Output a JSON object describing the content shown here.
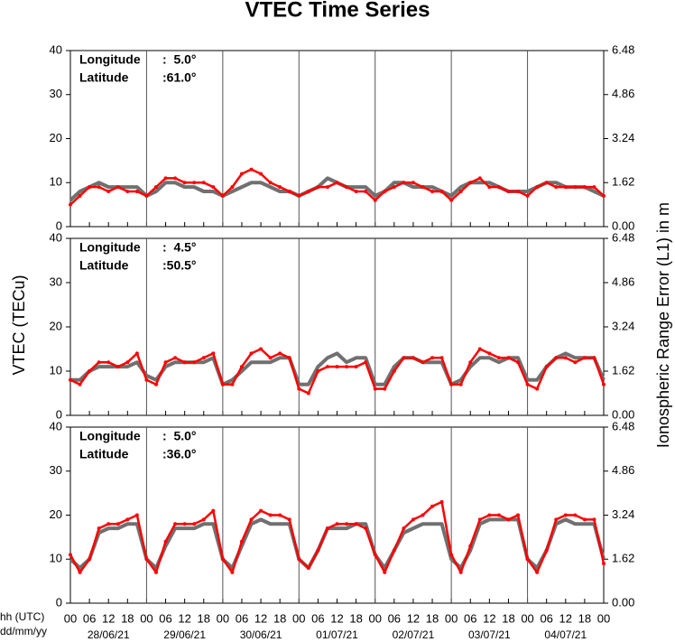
{
  "figure": {
    "title": "VTEC Time Series",
    "y_label": "VTEC (TECu)",
    "y2_label": "Ionospheric Range Error (L1) in m",
    "x_label_lines": [
      "hh (UTC)",
      "dd/mm/yy"
    ],
    "x": [
      0,
      3,
      6,
      9,
      12,
      15,
      18,
      21,
      24,
      27,
      30,
      33,
      36,
      39,
      42,
      45,
      48,
      51,
      54,
      57,
      60,
      63,
      66,
      69,
      72,
      75,
      78,
      81,
      84,
      87,
      90,
      93,
      96,
      99,
      102,
      105,
      108,
      111,
      114,
      117,
      120,
      123,
      126,
      129,
      132,
      135,
      138,
      141,
      144,
      147,
      150,
      153,
      156,
      159,
      162,
      165,
      168
    ],
    "xlim": [
      0,
      168
    ],
    "xticks": [
      {
        "value": 0,
        "label": "00"
      },
      {
        "value": 6,
        "label": "06"
      },
      12,
      18,
      {
        "value": 24,
        "label": "00"
      },
      {
        "value": 30,
        "label": "06"
      },
      {
        "value": 36,
        "label": "12"
      },
      {
        "value": 42,
        "label": "18"
      },
      {
        "value": 48,
        "label": "00"
      },
      {
        "value": 54,
        "label": "06"
      },
      {
        "value": 60,
        "label": "12"
      },
      {
        "value": 66,
        "label": "18"
      },
      {
        "value": 72,
        "label": "00"
      },
      {
        "value": 78,
        "label": "06"
      },
      {
        "value": 84,
        "label": "12"
      },
      {
        "value": 90,
        "label": "18"
      },
      {
        "value": 96,
        "label": "00"
      },
      {
        "value": 102,
        "label": "06"
      },
      {
        "value": 108,
        "label": "12"
      },
      {
        "value": 114,
        "label": "18"
      },
      {
        "value": 120,
        "label": "00"
      },
      {
        "value": 126,
        "label": "06"
      },
      {
        "value": 132,
        "label": "12"
      },
      {
        "value": 138,
        "label": "18"
      },
      {
        "value": 144,
        "label": "00"
      },
      {
        "value": 150,
        "label": "06"
      },
      {
        "value": 156,
        "label": "12"
      },
      {
        "value": 162,
        "label": "18"
      },
      {
        "value": 168,
        "label": "00"
      }
    ],
    "dates": [
      "28/06/21",
      "29/06/21",
      "30/06/21",
      "01/07/21",
      "02/07/21",
      "03/07/21",
      "04/07/21"
    ]
  },
  "chart_data": [
    {
      "type": "line",
      "lon_label": "Longitude",
      "lon_value": ":  5.0°",
      "lat_label": "Latitude",
      "lat_value": ":61.0°",
      "ylim": [
        0,
        40
      ],
      "yticks": [
        0,
        10,
        20,
        30,
        40
      ],
      "y2lim": [
        0,
        6.48
      ],
      "y2ticks": [
        {
          "value": 0,
          "label": "0.00"
        },
        1.62,
        3.24,
        4.86,
        6.48
      ],
      "series": [
        {
          "color": "#707070",
          "values": [
            6,
            8,
            9,
            10,
            9,
            9,
            9,
            9,
            7,
            8,
            10,
            10,
            9,
            9,
            8,
            8,
            7,
            8,
            9,
            10,
            10,
            9,
            8,
            8,
            7,
            8,
            9,
            11,
            10,
            9,
            9,
            9,
            7,
            8,
            10,
            10,
            9,
            9,
            9,
            8,
            7,
            9,
            10,
            10,
            10,
            9,
            8,
            8,
            8,
            9,
            10,
            10,
            9,
            9,
            9,
            8,
            7
          ]
        },
        {
          "color": "#ff0000",
          "values": [
            5,
            7,
            9,
            9,
            8,
            9,
            8,
            8,
            7,
            9,
            11,
            11,
            10,
            10,
            10,
            9,
            7,
            9,
            12,
            13,
            12,
            10,
            9,
            8,
            7,
            8,
            9,
            9,
            10,
            9,
            8,
            8,
            6,
            8,
            9,
            10,
            10,
            9,
            8,
            8,
            6,
            8,
            10,
            11,
            9,
            9,
            8,
            8,
            7,
            9,
            10,
            9,
            9,
            9,
            9,
            9,
            7
          ]
        }
      ]
    },
    {
      "type": "line",
      "lon_label": "Longitude",
      "lon_value": ":  4.5°",
      "lat_label": "Latitude",
      "lat_value": ":50.5°",
      "ylim": [
        0,
        40
      ],
      "yticks": [
        0,
        10,
        20,
        30,
        40
      ],
      "y2lim": [
        0,
        6.48
      ],
      "y2ticks": [
        {
          "value": 0,
          "label": "0.00"
        },
        1.62,
        3.24,
        4.86,
        6.48
      ],
      "series": [
        {
          "color": "#707070",
          "values": [
            8,
            8,
            10,
            11,
            11,
            11,
            11,
            12,
            9,
            8,
            11,
            12,
            12,
            12,
            12,
            13,
            7,
            8,
            10,
            12,
            12,
            12,
            13,
            13,
            7,
            7,
            11,
            13,
            14,
            12,
            13,
            13,
            7,
            7,
            11,
            13,
            13,
            12,
            12,
            12,
            7,
            8,
            11,
            13,
            13,
            12,
            13,
            13,
            8,
            8,
            11,
            13,
            14,
            13,
            13,
            13,
            8
          ]
        },
        {
          "color": "#ff0000",
          "values": [
            8,
            7,
            10,
            12,
            12,
            11,
            12,
            14,
            8,
            7,
            12,
            13,
            12,
            12,
            13,
            14,
            7,
            7,
            11,
            14,
            15,
            13,
            14,
            13,
            6,
            5,
            10,
            11,
            11,
            11,
            11,
            12,
            6,
            6,
            10,
            13,
            13,
            12,
            13,
            13,
            7,
            7,
            12,
            15,
            14,
            13,
            13,
            12,
            7,
            6,
            11,
            13,
            13,
            12,
            13,
            13,
            7
          ]
        }
      ]
    },
    {
      "type": "line",
      "lon_label": "Longitude",
      "lon_value": ":  5.0°",
      "lat_label": "Latitude",
      "lat_value": ":36.0°",
      "ylim": [
        0,
        40
      ],
      "yticks": [
        0,
        10,
        20,
        30,
        40
      ],
      "y2lim": [
        0,
        6.48
      ],
      "y2ticks": [
        {
          "value": 0,
          "label": "0.00"
        },
        1.62,
        3.24,
        4.86,
        6.48
      ],
      "series": [
        {
          "color": "#707070",
          "values": [
            10,
            8,
            10,
            16,
            17,
            17,
            18,
            18,
            10,
            8,
            13,
            17,
            17,
            17,
            18,
            18,
            10,
            8,
            13,
            18,
            19,
            18,
            18,
            18,
            10,
            8,
            12,
            17,
            17,
            17,
            18,
            18,
            11,
            8,
            12,
            16,
            17,
            18,
            18,
            18,
            10,
            8,
            12,
            18,
            19,
            19,
            19,
            19,
            10,
            8,
            12,
            18,
            19,
            18,
            18,
            18,
            10
          ]
        },
        {
          "color": "#ff0000",
          "values": [
            11,
            7,
            10,
            17,
            18,
            18,
            19,
            20,
            10,
            7,
            14,
            18,
            18,
            18,
            19,
            21,
            10,
            7,
            14,
            19,
            21,
            20,
            20,
            19,
            10,
            8,
            12,
            17,
            18,
            18,
            18,
            17,
            11,
            7,
            12,
            17,
            19,
            20,
            22,
            23,
            11,
            7,
            13,
            19,
            20,
            20,
            19,
            20,
            10,
            7,
            12,
            19,
            20,
            20,
            19,
            19,
            9
          ]
        }
      ]
    }
  ]
}
